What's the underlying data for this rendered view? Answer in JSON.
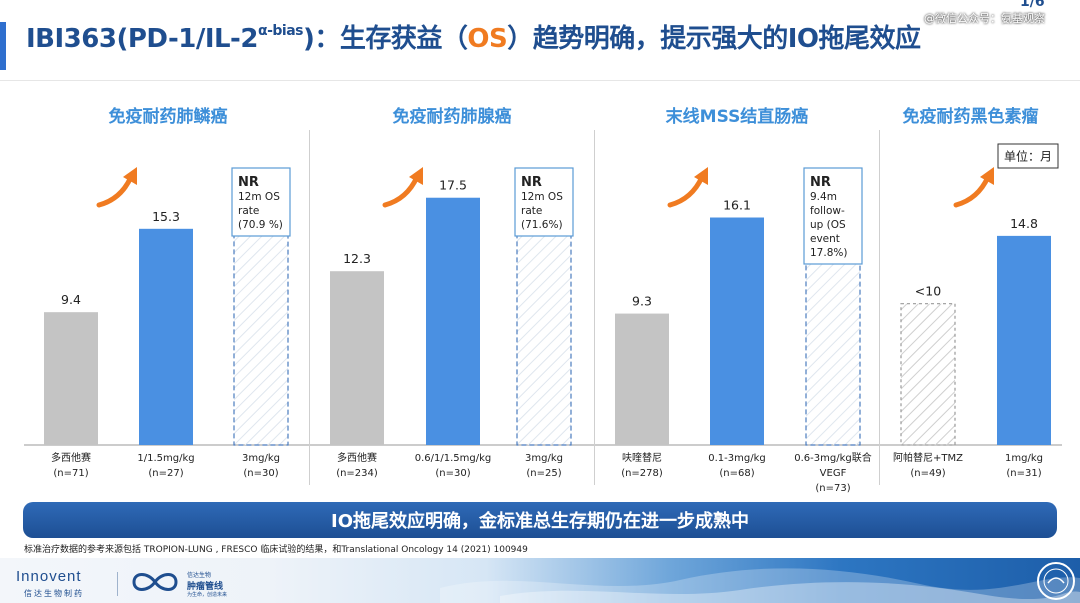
{
  "header": {
    "title_prefix": "IBI363(PD-1/IL-2",
    "title_sup": "α-bias",
    "title_mid": ")：生存获益（",
    "title_os": "OS",
    "title_suffix": "）趋势明确，提示强大的IO拖尾效应",
    "page_number": "1/6",
    "watermark": "@微信公众号：氨基观察"
  },
  "colors": {
    "title_blue": "#1f4e8f",
    "panel_title_blue": "#3d8fd9",
    "bar_gray": "#c4c4c4",
    "bar_blue": "#4a90e2",
    "accent_orange": "#f07b21",
    "banner_blue": "#1d4f94"
  },
  "unit_label": "单位：月",
  "chart_data": {
    "type": "bar",
    "ylabel": "",
    "ylim": [
      0,
      19
    ],
    "panels": [
      {
        "title": "免疫耐药肺鳞癌",
        "bars": [
          {
            "category": "多西他赛",
            "n": "(n=71)",
            "value": 9.4,
            "value_label": "9.4",
            "style": "gray"
          },
          {
            "category": "1/1.5mg/kg",
            "n": "(n=27)",
            "value": 15.3,
            "value_label": "15.3",
            "style": "blue"
          },
          {
            "category": "3mg/kg",
            "n": "(n=30)",
            "value": 18.5,
            "value_label": "",
            "style": "hatched",
            "note": [
              "NR",
              "12m OS",
              "rate",
              "(70.9 %)"
            ]
          }
        ]
      },
      {
        "title": "免疫耐药肺腺癌",
        "bars": [
          {
            "category": "多西他赛",
            "n": "(n=234)",
            "value": 12.3,
            "value_label": "12.3",
            "style": "gray"
          },
          {
            "category": "0.6/1/1.5mg/kg",
            "n": "(n=30)",
            "value": 17.5,
            "value_label": "17.5",
            "style": "blue"
          },
          {
            "category": "3mg/kg",
            "n": "(n=25)",
            "value": 18.5,
            "value_label": "",
            "style": "hatched",
            "note": [
              "NR",
              "12m OS",
              "rate",
              "(71.6%)"
            ]
          }
        ]
      },
      {
        "title": "末线MSS结直肠癌",
        "bars": [
          {
            "category": "呋喹替尼",
            "n": "(n=278)",
            "value": 9.3,
            "value_label": "9.3",
            "style": "gray"
          },
          {
            "category": "0.1-3mg/kg",
            "n": "(n=68)",
            "value": 16.1,
            "value_label": "16.1",
            "style": "blue"
          },
          {
            "category": "0.6-3mg/kg联合",
            "category2": "VEGF",
            "n": "(n=73)",
            "value": 18.5,
            "value_label": "",
            "style": "hatched",
            "note": [
              "NR",
              "9.4m",
              "follow-",
              "up (OS",
              "event",
              "17.8%)"
            ]
          }
        ]
      },
      {
        "title": "免疫耐药黑色素瘤",
        "bars": [
          {
            "category": "阿帕替尼+TMZ",
            "n": "(n=49)",
            "value": 10,
            "value_label": "<10",
            "style": "hatched-gray"
          },
          {
            "category": "1mg/kg",
            "n": "(n=31)",
            "value": 14.8,
            "value_label": "14.8",
            "style": "blue"
          }
        ]
      }
    ]
  },
  "banner": "IO拖尾效应明确，金标准总生存期仍在进一步成熟中",
  "source_note": "标准治疗数据的参考来源包括 TROPION-LUNG , FRESCO 临床试验的结果，和Translational Oncology 14 (2021) 100949",
  "footer": {
    "logo_innovent": "Innovent",
    "logo_innovent_cn": "信达生物制药",
    "logo_sub1": "信达生物",
    "logo_sub2": "肿瘤管线",
    "logo_sub3": "为生命，创造未来"
  }
}
